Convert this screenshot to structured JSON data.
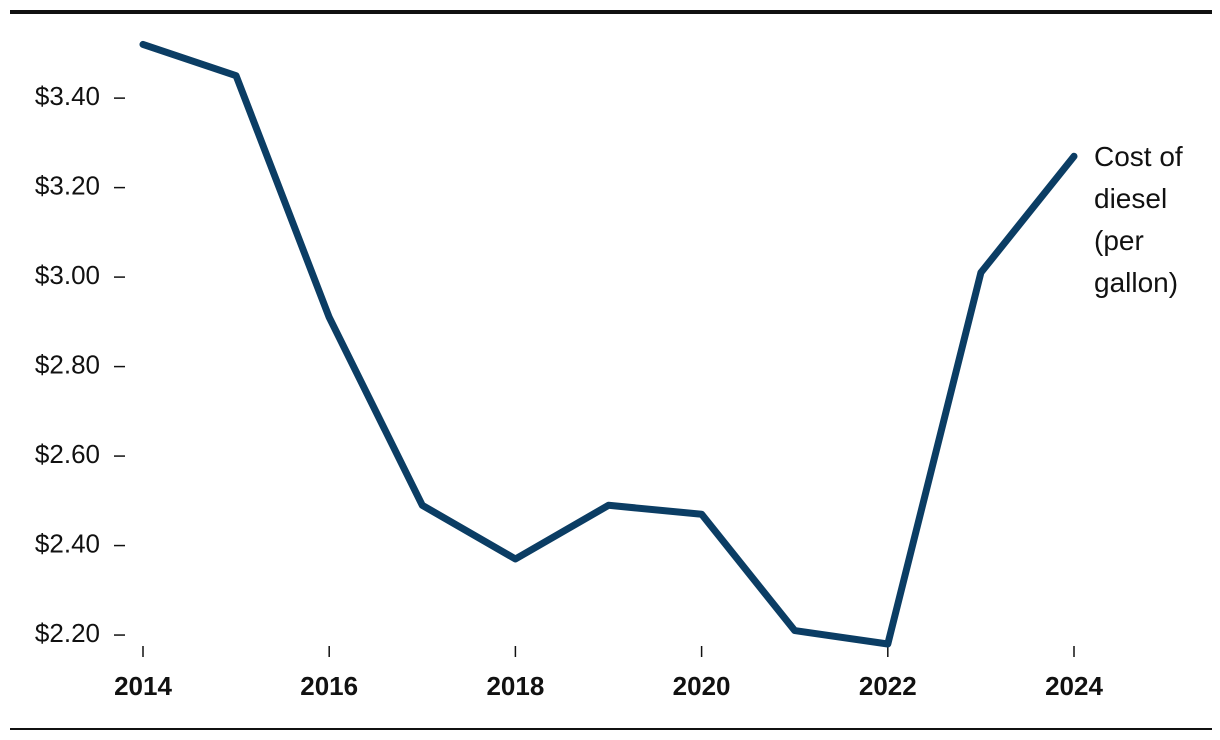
{
  "chart_data": {
    "type": "line",
    "x": [
      2014,
      2015,
      2016,
      2017,
      2018,
      2019,
      2020,
      2021,
      2022,
      2023,
      2024
    ],
    "series": [
      {
        "name": "Cost of diesel (per gallon)",
        "color": "#0b3d64",
        "values": [
          3.52,
          3.45,
          2.91,
          2.49,
          2.37,
          2.49,
          2.47,
          2.21,
          2.18,
          3.01,
          3.27
        ]
      }
    ],
    "xlim": [
      2014,
      2024
    ],
    "xticks": [
      2014,
      2016,
      2018,
      2020,
      2022,
      2024
    ],
    "ylim": [
      2.18,
      3.55
    ],
    "yticks": [
      {
        "value": 2.2,
        "label": "$2.20"
      },
      {
        "value": 2.4,
        "label": "$2.40"
      },
      {
        "value": 2.6,
        "label": "$2.60"
      },
      {
        "value": 2.8,
        "label": "$2.80"
      },
      {
        "value": 3.0,
        "label": "$3.00"
      },
      {
        "value": 3.2,
        "label": "$3.20"
      },
      {
        "value": 3.4,
        "label": "$3.40"
      }
    ],
    "grid": false
  }
}
